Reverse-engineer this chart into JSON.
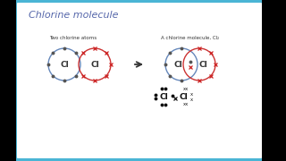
{
  "title": "Chlorine molecule",
  "title_color": "#5566aa",
  "bg_color": "#ffffff",
  "border_color": "#4ab5d5",
  "black_bar_color": "#000000",
  "label_two_atoms": "Two chlorine atoms",
  "label_molecule": "A chlorine molecule, Cl₂",
  "atom_label": "Cl",
  "circle_color_blue": "#6688bb",
  "circle_color_red": "#cc3333",
  "dot_color": "#555555",
  "cross_color": "#cc2222",
  "arrow_color": "#333333",
  "text_color": "#333333",
  "black": "#111111"
}
